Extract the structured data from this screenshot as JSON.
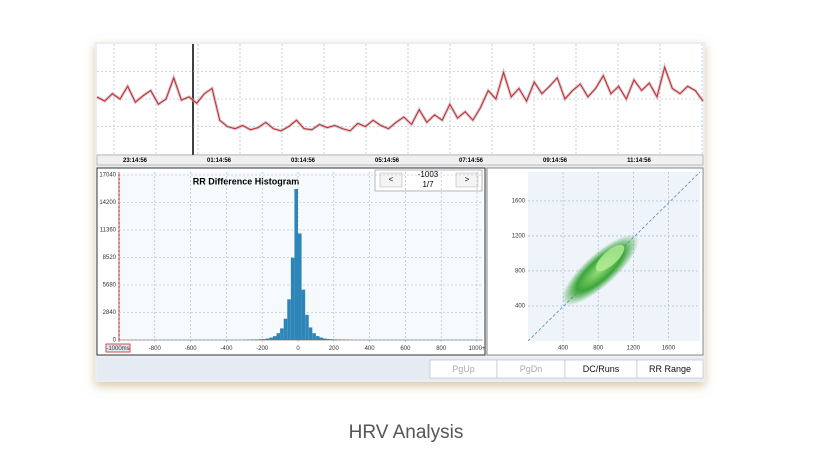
{
  "timeline": {
    "labels": [
      "23:14:56",
      "01:14:56",
      "03:14:56",
      "05:14:56",
      "07:14:56",
      "09:14:56",
      "11:14:56"
    ],
    "ylim": [
      0,
      100
    ],
    "values": [
      52,
      48,
      55,
      50,
      62,
      47,
      53,
      58,
      45,
      50,
      70,
      49,
      52,
      46,
      55,
      60,
      30,
      24,
      22,
      25,
      21,
      23,
      28,
      22,
      20,
      24,
      30,
      22,
      21,
      26,
      23,
      25,
      22,
      20,
      27,
      24,
      30,
      25,
      22,
      28,
      33,
      26,
      40,
      28,
      35,
      30,
      45,
      32,
      38,
      30,
      42,
      58,
      50,
      75,
      52,
      60,
      48,
      66,
      55,
      62,
      70,
      50,
      58,
      64,
      52,
      60,
      72,
      55,
      62,
      50,
      68,
      58,
      65,
      52,
      80,
      60,
      55,
      62,
      58,
      48
    ]
  },
  "histogram": {
    "title": "RR Difference Histogram",
    "nav": {
      "prev": "<",
      "next": ">",
      "value": "-1003",
      "page": "1/7"
    },
    "ylim": [
      0,
      17040
    ],
    "yticks": [
      0,
      2840,
      5680,
      8520,
      11360,
      14200,
      17040
    ],
    "xlim": [
      -1000,
      1000
    ],
    "xticks": [
      {
        "value": -1000,
        "label": "-1000ms"
      },
      -800,
      -600,
      -400,
      -200,
      0,
      200,
      400,
      600,
      800,
      {
        "value": 1000,
        "label": "1000+"
      }
    ],
    "bins": [
      -300,
      -280,
      -260,
      -240,
      -220,
      -200,
      -180,
      -160,
      -140,
      -120,
      -100,
      -80,
      -60,
      -40,
      -20,
      0,
      20,
      40,
      60,
      80,
      100,
      120,
      140,
      160,
      180,
      200,
      220,
      240,
      260,
      280,
      300
    ],
    "counts": [
      30,
      40,
      50,
      60,
      80,
      100,
      150,
      250,
      400,
      700,
      1200,
      2200,
      4200,
      8500,
      15600,
      11000,
      5200,
      2600,
      1300,
      700,
      400,
      250,
      150,
      100,
      80,
      60,
      50,
      40,
      30,
      20
    ],
    "color": "#2e86b8"
  },
  "scatter": {
    "xlim": [
      0,
      1960
    ],
    "ylim": [
      0,
      1930
    ],
    "xticks": [
      400,
      800,
      1200,
      1600
    ],
    "yticks": [
      400,
      800,
      1200,
      1600
    ]
  },
  "buttons": [
    "PgUp",
    "PgDn",
    "DC/Runs",
    "RR Range"
  ],
  "caption": "HRV Analysis"
}
